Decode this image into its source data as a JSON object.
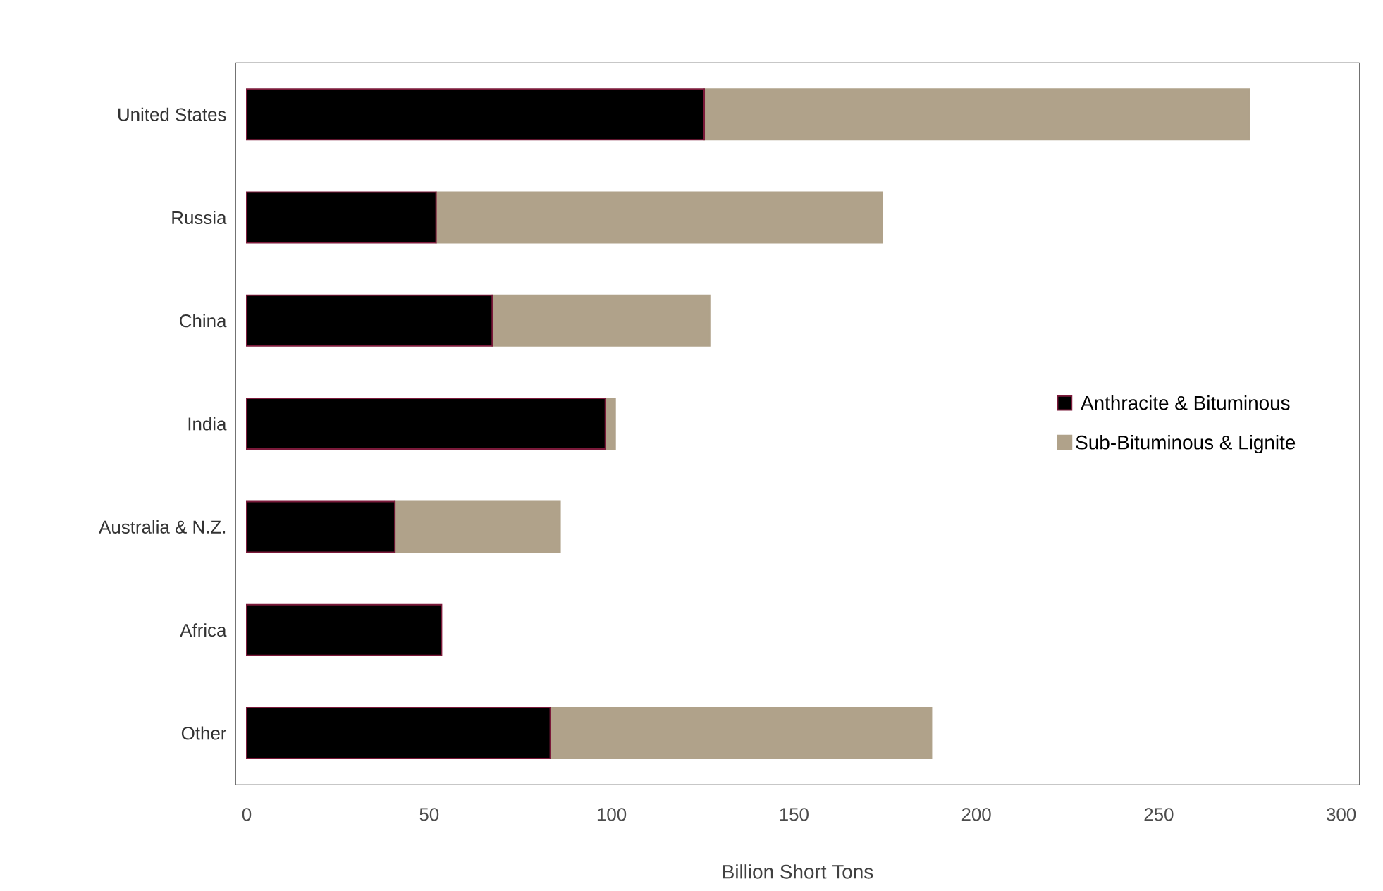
{
  "chart_data": {
    "type": "bar",
    "orientation": "horizontal",
    "stacked": true,
    "xlabel": "Billion Short Tons",
    "categories": [
      "United States",
      "Russia",
      "China",
      "India",
      "Australia & N.Z.",
      "Africa",
      "Other"
    ],
    "series": [
      {
        "name": "Anthracite & Bituminous",
        "color": "#000000",
        "values": [
          125.4,
          51.9,
          67.3,
          98.3,
          40.6,
          53.4,
          83.2
        ]
      },
      {
        "name": "Sub-Bituminous & Lignite",
        "color": "#b0a28a",
        "values": [
          149.4,
          122.3,
          59.6,
          2.7,
          45.3,
          0,
          104.5
        ]
      }
    ],
    "xlim": [
      -3,
      305
    ],
    "xticks": [
      0,
      50,
      100,
      150,
      200,
      250,
      300
    ],
    "grid": false,
    "legend": "right"
  }
}
